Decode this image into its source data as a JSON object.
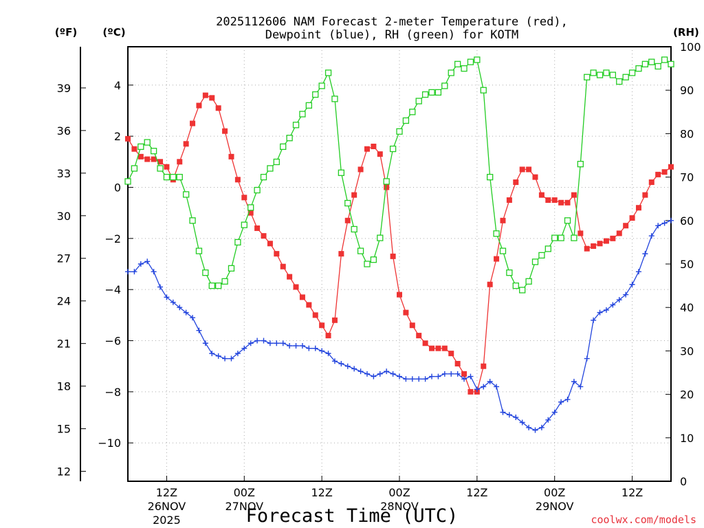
{
  "chart_data": {
    "type": "line",
    "title_line1": "2025112606 NAM Forecast 2-meter Temperature (red),",
    "title_line2": "Dewpoint (blue), RH (green) for KOTM",
    "xlabel": "Forecast Time (UTC)",
    "credit": "coolwx.com/models",
    "unit_f": "(ºF)",
    "unit_c": "(ºC)",
    "unit_rh": "(RH)",
    "x_range_hours": [
      0,
      84
    ],
    "x_ticks": [
      {
        "hour": 6,
        "label": "12Z",
        "date": "26NOV",
        "year": "2025"
      },
      {
        "hour": 18,
        "label": "00Z",
        "date": "27NOV",
        "year": ""
      },
      {
        "hour": 30,
        "label": "12Z",
        "date": "",
        "year": ""
      },
      {
        "hour": 42,
        "label": "00Z",
        "date": "28NOV",
        "year": ""
      },
      {
        "hour": 54,
        "label": "12Z",
        "date": "",
        "year": ""
      },
      {
        "hour": 66,
        "label": "00Z",
        "date": "29NOV",
        "year": ""
      },
      {
        "hour": 78,
        "label": "12Z",
        "date": "",
        "year": ""
      }
    ],
    "celsius_range": [
      -11.5,
      5.5
    ],
    "celsius_ticks": [
      4,
      2,
      0,
      -2,
      -4,
      -6,
      -8,
      -10
    ],
    "celsius_tick_labels": [
      "4",
      "2",
      "0",
      "−2",
      "−4",
      "−6",
      "−8",
      "−10"
    ],
    "fahrenheit_ticks": [
      39,
      36,
      33,
      30,
      27,
      24,
      21,
      18,
      15,
      12
    ],
    "rh_range": [
      0,
      100
    ],
    "rh_ticks": [
      100,
      90,
      80,
      70,
      60,
      50,
      40,
      30,
      20,
      10,
      0
    ],
    "series": [
      {
        "name": "Temperature",
        "color": "#ee3333",
        "marker": "filled-square",
        "axis": "celsius",
        "hours": [
          0,
          1,
          2,
          3,
          4,
          5,
          6,
          7,
          8,
          9,
          10,
          11,
          12,
          13,
          14,
          15,
          16,
          17,
          18,
          19,
          20,
          21,
          22,
          23,
          24,
          25,
          26,
          27,
          28,
          29,
          30,
          31,
          32,
          33,
          34,
          35,
          36,
          37,
          38,
          39,
          40,
          41,
          42,
          43,
          44,
          45,
          46,
          47,
          48,
          49,
          50,
          51,
          52,
          53,
          54,
          55,
          56,
          57,
          58,
          59,
          60,
          61,
          62,
          63,
          64,
          65,
          66,
          67,
          68,
          69,
          70,
          71,
          72,
          73,
          74,
          75,
          76,
          77,
          78,
          79,
          80,
          81,
          82,
          83,
          84
        ],
        "values": [
          1.9,
          1.5,
          1.2,
          1.1,
          1.1,
          1.0,
          0.8,
          0.3,
          1.0,
          1.7,
          2.5,
          3.2,
          3.6,
          3.5,
          3.1,
          2.2,
          1.2,
          0.3,
          -0.4,
          -1.0,
          -1.6,
          -1.9,
          -2.2,
          -2.6,
          -3.1,
          -3.5,
          -3.9,
          -4.3,
          -4.6,
          -5.0,
          -5.4,
          -5.8,
          -5.2,
          -2.6,
          -1.3,
          -0.3,
          0.7,
          1.5,
          1.6,
          1.3,
          0.0,
          -2.7,
          -4.2,
          -4.9,
          -5.4,
          -5.8,
          -6.1,
          -6.3,
          -6.3,
          -6.3,
          -6.5,
          -6.9,
          -7.3,
          -8.0,
          -8.0,
          -7.0,
          -3.8,
          -2.8,
          -1.3,
          -0.5,
          0.2,
          0.7,
          0.7,
          0.4,
          -0.3,
          -0.5,
          -0.5,
          -0.6,
          -0.6,
          -0.3,
          -1.8,
          -2.4,
          -2.3,
          -2.2,
          -2.1,
          -2.0,
          -1.8,
          -1.5,
          -1.2,
          -0.8,
          -0.3,
          0.2,
          0.5,
          0.6,
          0.8
        ]
      },
      {
        "name": "Dewpoint",
        "color": "#2244dd",
        "marker": "plus",
        "axis": "celsius",
        "hours": [
          0,
          1,
          2,
          3,
          4,
          5,
          6,
          7,
          8,
          9,
          10,
          11,
          12,
          13,
          14,
          15,
          16,
          17,
          18,
          19,
          20,
          21,
          22,
          23,
          24,
          25,
          26,
          27,
          28,
          29,
          30,
          31,
          32,
          33,
          34,
          35,
          36,
          37,
          38,
          39,
          40,
          41,
          42,
          43,
          44,
          45,
          46,
          47,
          48,
          49,
          50,
          51,
          52,
          53,
          54,
          55,
          56,
          57,
          58,
          59,
          60,
          61,
          62,
          63,
          64,
          65,
          66,
          67,
          68,
          69,
          70,
          71,
          72,
          73,
          74,
          75,
          76,
          77,
          78,
          79,
          80,
          81,
          82,
          83,
          84
        ],
        "values": [
          -3.3,
          -3.3,
          -3.0,
          -2.9,
          -3.3,
          -3.9,
          -4.3,
          -4.5,
          -4.7,
          -4.9,
          -5.1,
          -5.6,
          -6.1,
          -6.5,
          -6.6,
          -6.7,
          -6.7,
          -6.5,
          -6.3,
          -6.1,
          -6.0,
          -6.0,
          -6.1,
          -6.1,
          -6.1,
          -6.2,
          -6.2,
          -6.2,
          -6.3,
          -6.3,
          -6.4,
          -6.5,
          -6.8,
          -6.9,
          -7.0,
          -7.1,
          -7.2,
          -7.3,
          -7.4,
          -7.3,
          -7.2,
          -7.3,
          -7.4,
          -7.5,
          -7.5,
          -7.5,
          -7.5,
          -7.4,
          -7.4,
          -7.3,
          -7.3,
          -7.3,
          -7.5,
          -7.4,
          -7.9,
          -7.8,
          -7.6,
          -7.8,
          -8.8,
          -8.9,
          -9.0,
          -9.2,
          -9.4,
          -9.5,
          -9.4,
          -9.1,
          -8.8,
          -8.4,
          -8.3,
          -7.6,
          -7.8,
          -6.7,
          -5.2,
          -4.9,
          -4.8,
          -4.6,
          -4.4,
          -4.2,
          -3.8,
          -3.3,
          -2.6,
          -1.9,
          -1.5,
          -1.4,
          -1.3
        ]
      },
      {
        "name": "RH",
        "color": "#22cc22",
        "marker": "open-square",
        "axis": "rh",
        "hours": [
          0,
          1,
          2,
          3,
          4,
          5,
          6,
          7,
          8,
          9,
          10,
          11,
          12,
          13,
          14,
          15,
          16,
          17,
          18,
          19,
          20,
          21,
          22,
          23,
          24,
          25,
          26,
          27,
          28,
          29,
          30,
          31,
          32,
          33,
          34,
          35,
          36,
          37,
          38,
          39,
          40,
          41,
          42,
          43,
          44,
          45,
          46,
          47,
          48,
          49,
          50,
          51,
          52,
          53,
          54,
          55,
          56,
          57,
          58,
          59,
          60,
          61,
          62,
          63,
          64,
          65,
          66,
          67,
          68,
          69,
          70,
          71,
          72,
          73,
          74,
          75,
          76,
          77,
          78,
          79,
          80,
          81,
          82,
          83,
          84
        ],
        "values": [
          69.0,
          72.0,
          77.0,
          78.0,
          76.0,
          72.0,
          70.0,
          70.0,
          70.0,
          66.0,
          60.0,
          53.0,
          48.0,
          45.0,
          45.0,
          46.0,
          49.0,
          55.0,
          59.0,
          63.0,
          67.0,
          70.0,
          72.0,
          73.5,
          77.0,
          79.0,
          82.0,
          84.5,
          86.5,
          89.0,
          91.0,
          94.0,
          88.0,
          71.0,
          64.0,
          58.0,
          53.0,
          50.0,
          51.0,
          56.0,
          69.0,
          76.5,
          80.5,
          83.0,
          85.0,
          87.5,
          89.0,
          89.5,
          89.5,
          91.0,
          94.0,
          96.0,
          95.0,
          96.5,
          97.0,
          90.0,
          70.0,
          57.0,
          53.0,
          48.0,
          45.0,
          44.0,
          46.0,
          50.5,
          52.0,
          53.5,
          56.0,
          56.0,
          60.0,
          56.0,
          73.0,
          93.0,
          94.0,
          93.5,
          94.0,
          93.5,
          92.0,
          93.0,
          94.0,
          95.0,
          96.0,
          96.5,
          95.5,
          97.0,
          96.0
        ]
      }
    ]
  }
}
